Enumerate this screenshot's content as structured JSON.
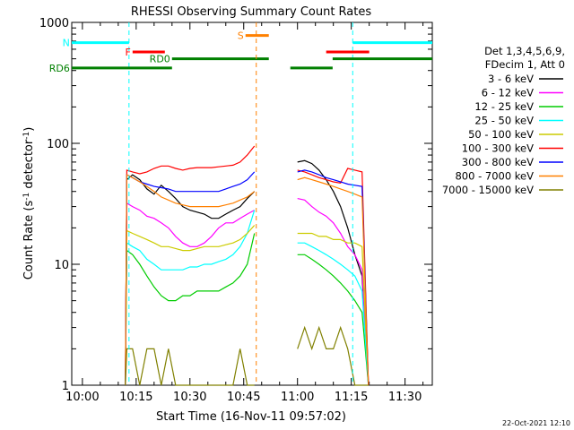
{
  "chart_data": {
    "type": "line",
    "title": "RHESSI Observing Summary Count Rates",
    "xlabel": "Start Time (16-Nov-11 09:57:02)",
    "ylabel_main": "Count Rate (s",
    "ylabel_sup1": "-1",
    "ylabel_mid": " detector",
    "ylabel_sup2": "-1",
    "ylabel_end": ")",
    "y_scale": "log",
    "ylim": [
      1,
      1000
    ],
    "y_ticks": [
      {
        "value": 1,
        "label": "1"
      },
      {
        "value": 10,
        "label": "10"
      },
      {
        "value": 100,
        "label": "100"
      },
      {
        "value": 1000,
        "label": "1000"
      }
    ],
    "x_ticks": [
      "10:00",
      "10:15",
      "10:30",
      "10:45",
      "11:00",
      "11:15",
      "11:30"
    ],
    "x_range_minutes": [
      597.03,
      697.6
    ],
    "x_tick_minutes": [
      600,
      615,
      630,
      645,
      660,
      675,
      690
    ],
    "timestamp": "22-Oct-2021 12:10",
    "legend_header": [
      "Det 1,3,4,5,6,9,",
      "FDecim 1, Att 0"
    ],
    "series": [
      {
        "name": "3 - 6 keV",
        "color": "#000000",
        "x": [
          612.0,
          612.4,
          614,
          616,
          618,
          620,
          622,
          624,
          626,
          628,
          630,
          632,
          634,
          636,
          638,
          640,
          642,
          644,
          646,
          648,
          650,
          652,
          654,
          656,
          658,
          660,
          662,
          664,
          666,
          668,
          670,
          672,
          674,
          676,
          678,
          679.8
        ],
        "y": [
          1.0,
          50,
          55,
          50,
          42,
          38,
          45,
          40,
          35,
          30,
          28,
          27,
          26,
          24,
          24,
          26,
          28,
          30,
          35,
          40,
          null,
          null,
          null,
          null,
          null,
          70,
          72,
          68,
          60,
          50,
          40,
          30,
          20,
          12,
          8,
          1.0
        ]
      },
      {
        "name": "6 - 12 keV",
        "color": "#ff00ff",
        "x": [
          612.0,
          612.4,
          614,
          616,
          618,
          620,
          622,
          624,
          626,
          628,
          630,
          632,
          634,
          636,
          638,
          640,
          642,
          644,
          646,
          648,
          650,
          652,
          654,
          656,
          658,
          660,
          662,
          664,
          666,
          668,
          670,
          672,
          674,
          676,
          678,
          679.8
        ],
        "y": [
          1.0,
          32,
          30,
          28,
          25,
          24,
          22,
          20,
          17,
          15,
          14,
          14,
          15,
          17,
          20,
          22,
          22,
          24,
          26,
          28,
          null,
          null,
          null,
          null,
          null,
          35,
          34,
          30,
          27,
          25,
          22,
          18,
          14,
          12,
          9,
          1.0
        ]
      },
      {
        "name": "12 - 25 keV",
        "color": "#00cc00",
        "x": [
          612.0,
          612.4,
          614,
          616,
          618,
          620,
          622,
          624,
          626,
          628,
          630,
          632,
          634,
          636,
          638,
          640,
          642,
          644,
          646,
          648,
          650,
          652,
          654,
          656,
          658,
          660,
          662,
          664,
          666,
          668,
          670,
          672,
          674,
          676,
          678,
          679.8
        ],
        "y": [
          1.0,
          13,
          12,
          10,
          8,
          6.5,
          5.5,
          5,
          5,
          5.5,
          5.5,
          6,
          6,
          6,
          6,
          6.5,
          7,
          8,
          10,
          18,
          null,
          null,
          null,
          null,
          null,
          12,
          12,
          11,
          10,
          9,
          8,
          7,
          6,
          5,
          4,
          1.0
        ]
      },
      {
        "name": "25 - 50 keV",
        "color": "#00ffff",
        "x": [
          612.0,
          612.4,
          614,
          616,
          618,
          620,
          622,
          624,
          626,
          628,
          630,
          632,
          634,
          636,
          638,
          640,
          642,
          644,
          646,
          648,
          650,
          652,
          654,
          656,
          658,
          660,
          662,
          664,
          666,
          668,
          670,
          672,
          674,
          676,
          678,
          679.8
        ],
        "y": [
          1.0,
          15,
          14,
          13,
          11,
          10,
          9,
          9,
          9,
          9,
          9.5,
          9.5,
          10,
          10,
          10.5,
          11,
          12,
          14,
          18,
          28,
          null,
          null,
          null,
          null,
          null,
          15,
          15,
          14,
          13,
          12,
          11,
          10,
          9,
          8,
          6,
          1.0
        ]
      },
      {
        "name": "50 - 100 keV",
        "color": "#cccc00",
        "x": [
          612.0,
          612.4,
          614,
          616,
          618,
          620,
          622,
          624,
          626,
          628,
          630,
          632,
          634,
          636,
          638,
          640,
          642,
          644,
          646,
          648,
          650,
          652,
          654,
          656,
          658,
          660,
          662,
          664,
          666,
          668,
          670,
          672,
          674,
          676,
          678,
          679.8
        ],
        "y": [
          1.0,
          19,
          18,
          17,
          16,
          15,
          14,
          14,
          13.5,
          13,
          13,
          13.5,
          14,
          14,
          14,
          14.5,
          15,
          16,
          18,
          21,
          null,
          null,
          null,
          null,
          null,
          18,
          18,
          18,
          17,
          17,
          16,
          16,
          15,
          15,
          14,
          1.0
        ]
      },
      {
        "name": "100 - 300 keV",
        "color": "#ff0000",
        "x": [
          612.0,
          612.4,
          614,
          616,
          618,
          620,
          622,
          624,
          626,
          628,
          630,
          632,
          634,
          636,
          638,
          640,
          642,
          644,
          646,
          648,
          650,
          652,
          654,
          656,
          658,
          660,
          662,
          664,
          666,
          668,
          670,
          672,
          674,
          676,
          678,
          679.8
        ],
        "y": [
          1.0,
          60,
          58,
          56,
          58,
          62,
          65,
          65,
          62,
          60,
          62,
          63,
          63,
          63,
          64,
          65,
          66,
          70,
          80,
          95,
          null,
          null,
          null,
          null,
          null,
          60,
          58,
          55,
          52,
          50,
          48,
          47,
          62,
          60,
          58,
          1.0
        ]
      },
      {
        "name": "300 - 800 keV",
        "color": "#0000ff",
        "x": [
          612.0,
          612.4,
          614,
          616,
          618,
          620,
          622,
          624,
          626,
          628,
          630,
          632,
          634,
          636,
          638,
          640,
          642,
          644,
          646,
          648,
          650,
          652,
          654,
          656,
          658,
          660,
          662,
          664,
          666,
          668,
          670,
          672,
          674,
          676,
          678,
          679.8
        ],
        "y": [
          1.0,
          55,
          52,
          48,
          46,
          44,
          43,
          42,
          40,
          40,
          40,
          40,
          40,
          40,
          40,
          42,
          44,
          46,
          50,
          58,
          null,
          null,
          null,
          null,
          null,
          58,
          60,
          58,
          55,
          52,
          50,
          48,
          46,
          45,
          44,
          1.0
        ]
      },
      {
        "name": "800 - 7000 keV",
        "color": "#ff8000",
        "x": [
          612.0,
          612.4,
          614,
          616,
          618,
          620,
          622,
          624,
          626,
          628,
          630,
          632,
          634,
          636,
          638,
          640,
          642,
          644,
          646,
          648,
          650,
          652,
          654,
          656,
          658,
          660,
          662,
          664,
          666,
          668,
          670,
          672,
          674,
          676,
          678,
          679.8
        ],
        "y": [
          1.0,
          55,
          52,
          48,
          44,
          40,
          36,
          34,
          32,
          31,
          30,
          30,
          30,
          30,
          30,
          31,
          32,
          34,
          36,
          40,
          null,
          null,
          null,
          null,
          null,
          50,
          52,
          50,
          48,
          46,
          44,
          42,
          40,
          38,
          36,
          1.0
        ]
      },
      {
        "name": "7000 - 15000 keV",
        "color": "#808000",
        "x": [
          612.0,
          612.4,
          614,
          616,
          618,
          620,
          622,
          624,
          626,
          628,
          630,
          632,
          634,
          636,
          638,
          640,
          642,
          644,
          646,
          648,
          650,
          652,
          654,
          656,
          658,
          660,
          662,
          664,
          666,
          668,
          670,
          672,
          674,
          676,
          678,
          679.8
        ],
        "y": [
          1.0,
          2.0,
          2.0,
          1.0,
          2.0,
          2.0,
          1.0,
          2.0,
          1.0,
          1.0,
          1.0,
          1.0,
          1.0,
          1.0,
          1.0,
          1.0,
          1.0,
          2.0,
          1.0,
          1.0,
          null,
          null,
          null,
          null,
          null,
          2.0,
          3.0,
          2.0,
          3.0,
          2.0,
          2.0,
          3.0,
          2.0,
          1.0,
          1.0,
          1.0
        ]
      }
    ],
    "attenuator_markers": [
      {
        "label": "N",
        "color": "#00ffff",
        "segments": [
          [
            597.0,
            613.0
          ],
          [
            675.4,
            697.6
          ]
        ],
        "y": 680,
        "vlines": [
          613.0,
          675.4
        ]
      },
      {
        "label": "F",
        "color": "#ff0000",
        "segments": [
          [
            614.0,
            623.0
          ],
          [
            668.0,
            680.0
          ]
        ],
        "y": 570
      },
      {
        "label": "RD0",
        "color": "#008000",
        "segments": [
          [
            625.0,
            652.0
          ],
          [
            669.8,
            697.6
          ]
        ],
        "y": 500
      },
      {
        "label": "RD6",
        "color": "#008000",
        "segments": [
          [
            597.0,
            625.0
          ],
          [
            658.0,
            669.8
          ]
        ],
        "y": 420
      },
      {
        "label": "S",
        "color": "#ff8000",
        "segments": [
          [
            645.5,
            652.0
          ]
        ],
        "y": 780,
        "vlines": [
          648.5
        ]
      }
    ]
  }
}
